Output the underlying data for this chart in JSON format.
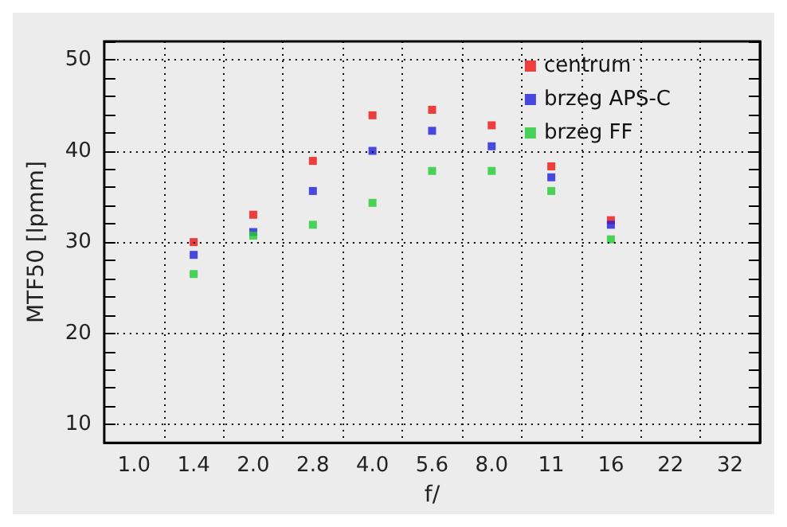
{
  "chart_data": {
    "type": "scatter",
    "xlabel": "f/",
    "ylabel": "MTF50 [lpmm]",
    "categories": [
      "1.0",
      "1.4",
      "2.0",
      "2.8",
      "4.0",
      "5.6",
      "8.0",
      "11",
      "16",
      "22",
      "32"
    ],
    "series": [
      {
        "name": "centrum",
        "color": "#ee1111",
        "values": [
          null,
          30.0,
          33.0,
          38.9,
          43.9,
          44.5,
          42.8,
          38.3,
          32.4,
          null,
          null
        ]
      },
      {
        "name": "brzeg APS-C",
        "color": "#1f1fdd",
        "values": [
          null,
          28.6,
          31.1,
          35.6,
          40.0,
          42.2,
          40.5,
          37.1,
          31.9,
          null,
          null
        ]
      },
      {
        "name": "brzeg FF",
        "color": "#22cc33",
        "values": [
          null,
          26.5,
          30.7,
          31.9,
          34.3,
          37.8,
          37.8,
          35.6,
          30.3,
          null,
          null
        ]
      }
    ],
    "ylim": [
      8,
      52
    ],
    "yticks": [
      {
        "value": 8,
        "label": null
      },
      10,
      {
        "value": 12,
        "label": null
      },
      {
        "value": 14,
        "label": null
      },
      {
        "value": 16,
        "label": null
      },
      {
        "value": 18,
        "label": null
      },
      20,
      {
        "value": 22,
        "label": null
      },
      {
        "value": 24,
        "label": null
      },
      {
        "value": 26,
        "label": null
      },
      {
        "value": 28,
        "label": null
      },
      30,
      {
        "value": 32,
        "label": null
      },
      {
        "value": 34,
        "label": null
      },
      {
        "value": 36,
        "label": null
      },
      {
        "value": 38,
        "label": null
      },
      40,
      {
        "value": 42,
        "label": null
      },
      {
        "value": 44,
        "label": null
      },
      {
        "value": 46,
        "label": null
      },
      {
        "value": 48,
        "label": null
      },
      50,
      {
        "value": 52,
        "label": null
      }
    ],
    "grid": true,
    "legend": "top right",
    "marker": "square"
  }
}
